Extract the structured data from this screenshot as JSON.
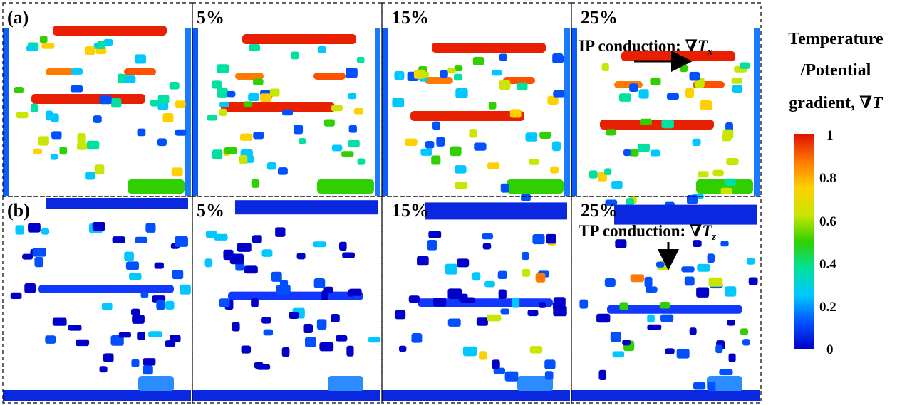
{
  "figure": {
    "rows": [
      {
        "id": "a",
        "panels": [
          {
            "label": "(a)"
          },
          {
            "label": "5%"
          },
          {
            "label": "15%"
          },
          {
            "label": "25%",
            "annotation": {
              "prefix": "IP conduction: ∇",
              "var": "T",
              "sub": "x"
            }
          }
        ]
      },
      {
        "id": "b",
        "panels": [
          {
            "label": "(b)"
          },
          {
            "label": "5%"
          },
          {
            "label": "15%"
          },
          {
            "label": "25%",
            "annotation": {
              "prefix": "TP conduction: ∇",
              "var": "T",
              "sub": "z"
            }
          }
        ]
      }
    ],
    "colorbar": {
      "title_lines": [
        "Temperature",
        "/Potential",
        "gradient, ∇"
      ],
      "title_var": "T",
      "ticks": [
        "1",
        "0.8",
        "0.6",
        "0.4",
        "0.2",
        "0"
      ],
      "colormap": [
        "#0000c8",
        "#0050ff",
        "#00c8ff",
        "#00e0a0",
        "#30d000",
        "#c8e600",
        "#ffd000",
        "#ff7a00",
        "#e01000"
      ]
    }
  }
}
